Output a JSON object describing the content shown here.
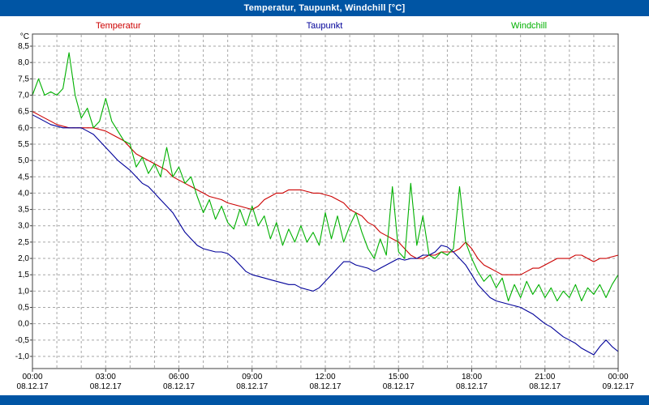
{
  "window": {
    "title": "Temperatur, Taupunkt, Windchill [°C]"
  },
  "legend": [
    {
      "label": "Temperatur",
      "color": "#cc0000"
    },
    {
      "label": "Taupunkt",
      "color": "#000099"
    },
    {
      "label": "Windchill",
      "color": "#00b000"
    }
  ],
  "colors": {
    "titlebar": "#0055a4",
    "bottombar": "#0055a4",
    "grid": "#a6a6a6",
    "plot_border": "#404040",
    "temperatur": "#cc0000",
    "taupunkt": "#000099",
    "windchill": "#00b000"
  },
  "chart_data": {
    "type": "line",
    "title": "Temperatur, Taupunkt, Windchill [°C]",
    "xlabel": "",
    "ylabel": "°C",
    "y_unit": "°C",
    "ylim": [
      -1.0,
      8.5
    ],
    "y_tick_step": 0.5,
    "y_tick_labels": [
      "8,5",
      "8,0",
      "7,5",
      "7,0",
      "6,5",
      "6,0",
      "5,5",
      "5,0",
      "4,5",
      "4,0",
      "3,5",
      "3,0",
      "2,5",
      "2,0",
      "1,5",
      "1,0",
      "0,5",
      "0,0",
      "-0,5",
      "-1,0"
    ],
    "grid": true,
    "legend_position": "top",
    "x_hours_range": [
      0,
      24
    ],
    "x_step_hours": 0.25,
    "x_tick_interval_hours": 3,
    "x_ticks": [
      {
        "time": "00:00",
        "date": "08.12.17"
      },
      {
        "time": "03:00",
        "date": "08.12.17"
      },
      {
        "time": "06:00",
        "date": "08.12.17"
      },
      {
        "time": "09:00",
        "date": "08.12.17"
      },
      {
        "time": "12:00",
        "date": "08.12.17"
      },
      {
        "time": "15:00",
        "date": "08.12.17"
      },
      {
        "time": "18:00",
        "date": "08.12.17"
      },
      {
        "time": "21:00",
        "date": "08.12.17"
      },
      {
        "time": "00:00",
        "date": "09.12.17"
      }
    ],
    "series": [
      {
        "name": "Temperatur",
        "color": "#cc0000",
        "values": [
          6.5,
          6.4,
          6.3,
          6.2,
          6.1,
          6.05,
          6.0,
          6.0,
          6.0,
          6.0,
          6.0,
          5.95,
          5.9,
          5.8,
          5.7,
          5.6,
          5.4,
          5.2,
          5.1,
          5.0,
          4.9,
          4.8,
          4.7,
          4.5,
          4.4,
          4.3,
          4.2,
          4.1,
          4.0,
          3.9,
          3.85,
          3.8,
          3.7,
          3.65,
          3.6,
          3.55,
          3.5,
          3.6,
          3.8,
          3.9,
          4.0,
          4.0,
          4.1,
          4.1,
          4.1,
          4.05,
          4.0,
          4.0,
          3.95,
          3.9,
          3.8,
          3.7,
          3.5,
          3.4,
          3.3,
          3.1,
          3.0,
          2.8,
          2.7,
          2.6,
          2.5,
          2.3,
          2.1,
          2.0,
          2.0,
          2.1,
          2.1,
          2.2,
          2.2,
          2.2,
          2.3,
          2.5,
          2.3,
          2.0,
          1.8,
          1.7,
          1.6,
          1.5,
          1.5,
          1.5,
          1.5,
          1.6,
          1.7,
          1.7,
          1.8,
          1.9,
          2.0,
          2.0,
          2.0,
          2.1,
          2.1,
          2.0,
          1.9,
          2.0,
          2.0,
          2.05,
          2.1
        ]
      },
      {
        "name": "Taupunkt",
        "color": "#000099",
        "values": [
          6.4,
          6.3,
          6.2,
          6.1,
          6.05,
          6.0,
          6.0,
          6.0,
          6.0,
          5.9,
          5.8,
          5.6,
          5.4,
          5.2,
          5.0,
          4.85,
          4.7,
          4.5,
          4.3,
          4.2,
          4.0,
          3.8,
          3.6,
          3.4,
          3.1,
          2.8,
          2.6,
          2.4,
          2.3,
          2.25,
          2.2,
          2.2,
          2.15,
          2.0,
          1.8,
          1.6,
          1.5,
          1.45,
          1.4,
          1.35,
          1.3,
          1.25,
          1.2,
          1.2,
          1.1,
          1.05,
          1.0,
          1.1,
          1.3,
          1.5,
          1.7,
          1.9,
          1.9,
          1.8,
          1.75,
          1.7,
          1.6,
          1.7,
          1.8,
          1.9,
          2.0,
          1.95,
          2.0,
          2.0,
          2.1,
          2.1,
          2.2,
          2.4,
          2.35,
          2.2,
          2.0,
          1.8,
          1.5,
          1.2,
          1.0,
          0.8,
          0.7,
          0.65,
          0.6,
          0.55,
          0.5,
          0.4,
          0.3,
          0.15,
          0.0,
          -0.1,
          -0.25,
          -0.4,
          -0.5,
          -0.6,
          -0.75,
          -0.85,
          -0.95,
          -0.7,
          -0.5,
          -0.7,
          -0.85
        ]
      },
      {
        "name": "Windchill",
        "color": "#00b000",
        "values": [
          7.0,
          7.5,
          7.0,
          7.1,
          7.0,
          7.2,
          8.3,
          7.0,
          6.3,
          6.6,
          6.0,
          6.2,
          6.9,
          6.2,
          5.9,
          5.6,
          5.5,
          4.8,
          5.1,
          4.6,
          4.9,
          4.5,
          5.4,
          4.5,
          4.8,
          4.3,
          4.5,
          3.9,
          3.4,
          3.8,
          3.2,
          3.6,
          3.1,
          2.9,
          3.5,
          3.0,
          3.6,
          3.0,
          3.3,
          2.6,
          3.1,
          2.4,
          2.9,
          2.5,
          3.0,
          2.5,
          2.8,
          2.4,
          3.4,
          2.6,
          3.3,
          2.5,
          3.0,
          3.4,
          2.8,
          2.3,
          2.0,
          2.6,
          2.1,
          4.2,
          2.2,
          2.0,
          4.3,
          2.4,
          3.3,
          2.1,
          2.0,
          2.2,
          2.1,
          2.3,
          4.2,
          2.5,
          2.0,
          1.6,
          1.3,
          1.5,
          1.1,
          1.4,
          0.7,
          1.2,
          0.8,
          1.3,
          0.9,
          1.2,
          0.8,
          1.1,
          0.7,
          1.0,
          0.8,
          1.2,
          0.7,
          1.1,
          0.9,
          1.2,
          0.8,
          1.2,
          1.5
        ]
      }
    ]
  }
}
